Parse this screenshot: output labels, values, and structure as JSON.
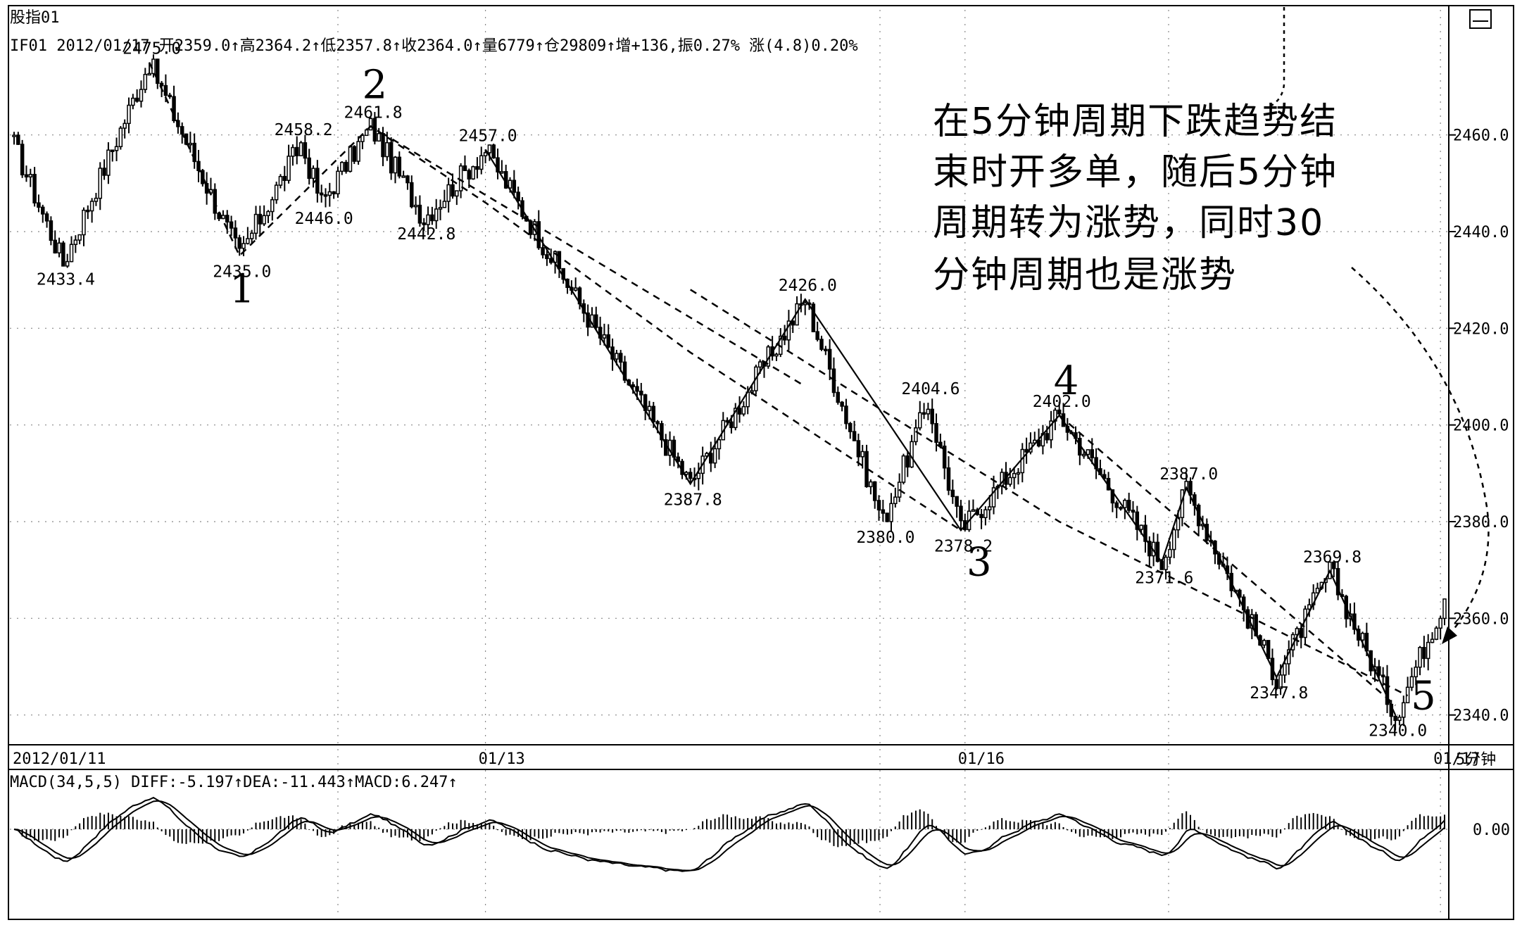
{
  "title": "股指01",
  "info_line": "IF01 2012/01/17 开2359.0↑高2364.2↑低2357.8↑收2364.0↑量6779↑仓29809↑增+136,振0.27% 涨(4.8)0.20%",
  "period_label": "5分钟",
  "annotation": {
    "lines": [
      "在5分钟周期下跌趋势结",
      "束时开多单，随后5分钟",
      "周期转为涨势，同时30",
      "分钟周期也是涨势"
    ]
  },
  "wave_labels": [
    "1",
    "2",
    "3",
    "4",
    "5"
  ],
  "macd": {
    "label": "MACD(34,5,5) DIFF:-5.197↑DEA:-11.443↑MACD:6.247↑",
    "zero_label": "0.00"
  },
  "colors": {
    "foreground": "#000000",
    "background": "#ffffff"
  },
  "chart_data": {
    "type": "candlestick",
    "timeframe": "5分钟",
    "ylim": [
      2335,
      2485
    ],
    "yticks": [
      "2460.0",
      "2440.0",
      "2420.0",
      "2400.0",
      "2380.0",
      "2360.0",
      "2340.0"
    ],
    "ytick_values": [
      2460,
      2440,
      2420,
      2400,
      2380,
      2360,
      2340
    ],
    "xlabels": [
      "2012/01/11",
      "01/13",
      "01/16",
      "01/17"
    ],
    "points_count": 350,
    "pivots": [
      {
        "idx": 0,
        "value": 2458.0,
        "label": ""
      },
      {
        "idx": 12,
        "value": 2433.4,
        "label": "2433.4"
      },
      {
        "idx": 33,
        "value": 2475.0,
        "label": "2475.0"
      },
      {
        "idx": 55,
        "value": 2435.0,
        "label": "2435.0"
      },
      {
        "idx": 70,
        "value": 2458.2,
        "label": "2458.2"
      },
      {
        "idx": 75,
        "value": 2446.0,
        "label": "2446.0"
      },
      {
        "idx": 87,
        "value": 2461.8,
        "label": "2461.8"
      },
      {
        "idx": 100,
        "value": 2442.8,
        "label": "2442.8"
      },
      {
        "idx": 115,
        "value": 2457.0,
        "label": "2457.0"
      },
      {
        "idx": 165,
        "value": 2387.8,
        "label": "2387.8"
      },
      {
        "idx": 193,
        "value": 2426.0,
        "label": "2426.0"
      },
      {
        "idx": 212,
        "value": 2380.0,
        "label": "2380.0"
      },
      {
        "idx": 223,
        "value": 2404.6,
        "label": "2404.6"
      },
      {
        "idx": 231,
        "value": 2378.2,
        "label": "2378.2"
      },
      {
        "idx": 255,
        "value": 2402.0,
        "label": "2402.0"
      },
      {
        "idx": 280,
        "value": 2371.6,
        "label": "2371.6"
      },
      {
        "idx": 286,
        "value": 2387.0,
        "label": "2387.0"
      },
      {
        "idx": 308,
        "value": 2347.8,
        "label": "2347.8"
      },
      {
        "idx": 321,
        "value": 2369.8,
        "label": "2369.8"
      },
      {
        "idx": 337,
        "value": 2340.0,
        "label": "2340.0"
      },
      {
        "idx": 349,
        "value": 2364.0,
        "label": ""
      }
    ],
    "waves": [
      {
        "label": "1",
        "idx": 55,
        "value": 2435.0
      },
      {
        "label": "2",
        "idx": 87,
        "value": 2461.8
      },
      {
        "label": "3",
        "idx": 231,
        "value": 2378.2
      },
      {
        "label": "4",
        "idx": 255,
        "value": 2402.0
      },
      {
        "label": "5",
        "idx": 337,
        "value": 2340.0
      }
    ],
    "solid_trend": [
      {
        "idx": 115,
        "value": 2457.0
      },
      {
        "idx": 165,
        "value": 2387.8
      },
      {
        "idx": 193,
        "value": 2426.0
      },
      {
        "idx": 231,
        "value": 2378.2
      },
      {
        "idx": 255,
        "value": 2402.0
      },
      {
        "idx": 280,
        "value": 2371.6
      },
      {
        "idx": 286,
        "value": 2387.0
      },
      {
        "idx": 308,
        "value": 2347.8
      },
      {
        "idx": 321,
        "value": 2369.8
      },
      {
        "idx": 337,
        "value": 2340.0
      }
    ],
    "dashed_lines": [
      [
        {
          "idx": 33,
          "value": 2475.0
        },
        {
          "idx": 55,
          "value": 2435.0
        },
        {
          "idx": 87,
          "value": 2461.8
        },
        {
          "idx": 115,
          "value": 2446.0
        },
        {
          "idx": 165,
          "value": 2415.0
        },
        {
          "idx": 231,
          "value": 2378.2
        }
      ],
      [
        {
          "idx": 87,
          "value": 2461.8
        },
        {
          "idx": 193,
          "value": 2408.0
        }
      ],
      [
        {
          "idx": 255,
          "value": 2402.0
        },
        {
          "idx": 337,
          "value": 2342.0
        }
      ],
      [
        {
          "idx": 165,
          "value": 2428.0
        },
        {
          "idx": 255,
          "value": 2380.0
        },
        {
          "idx": 340,
          "value": 2344.0
        }
      ]
    ]
  }
}
